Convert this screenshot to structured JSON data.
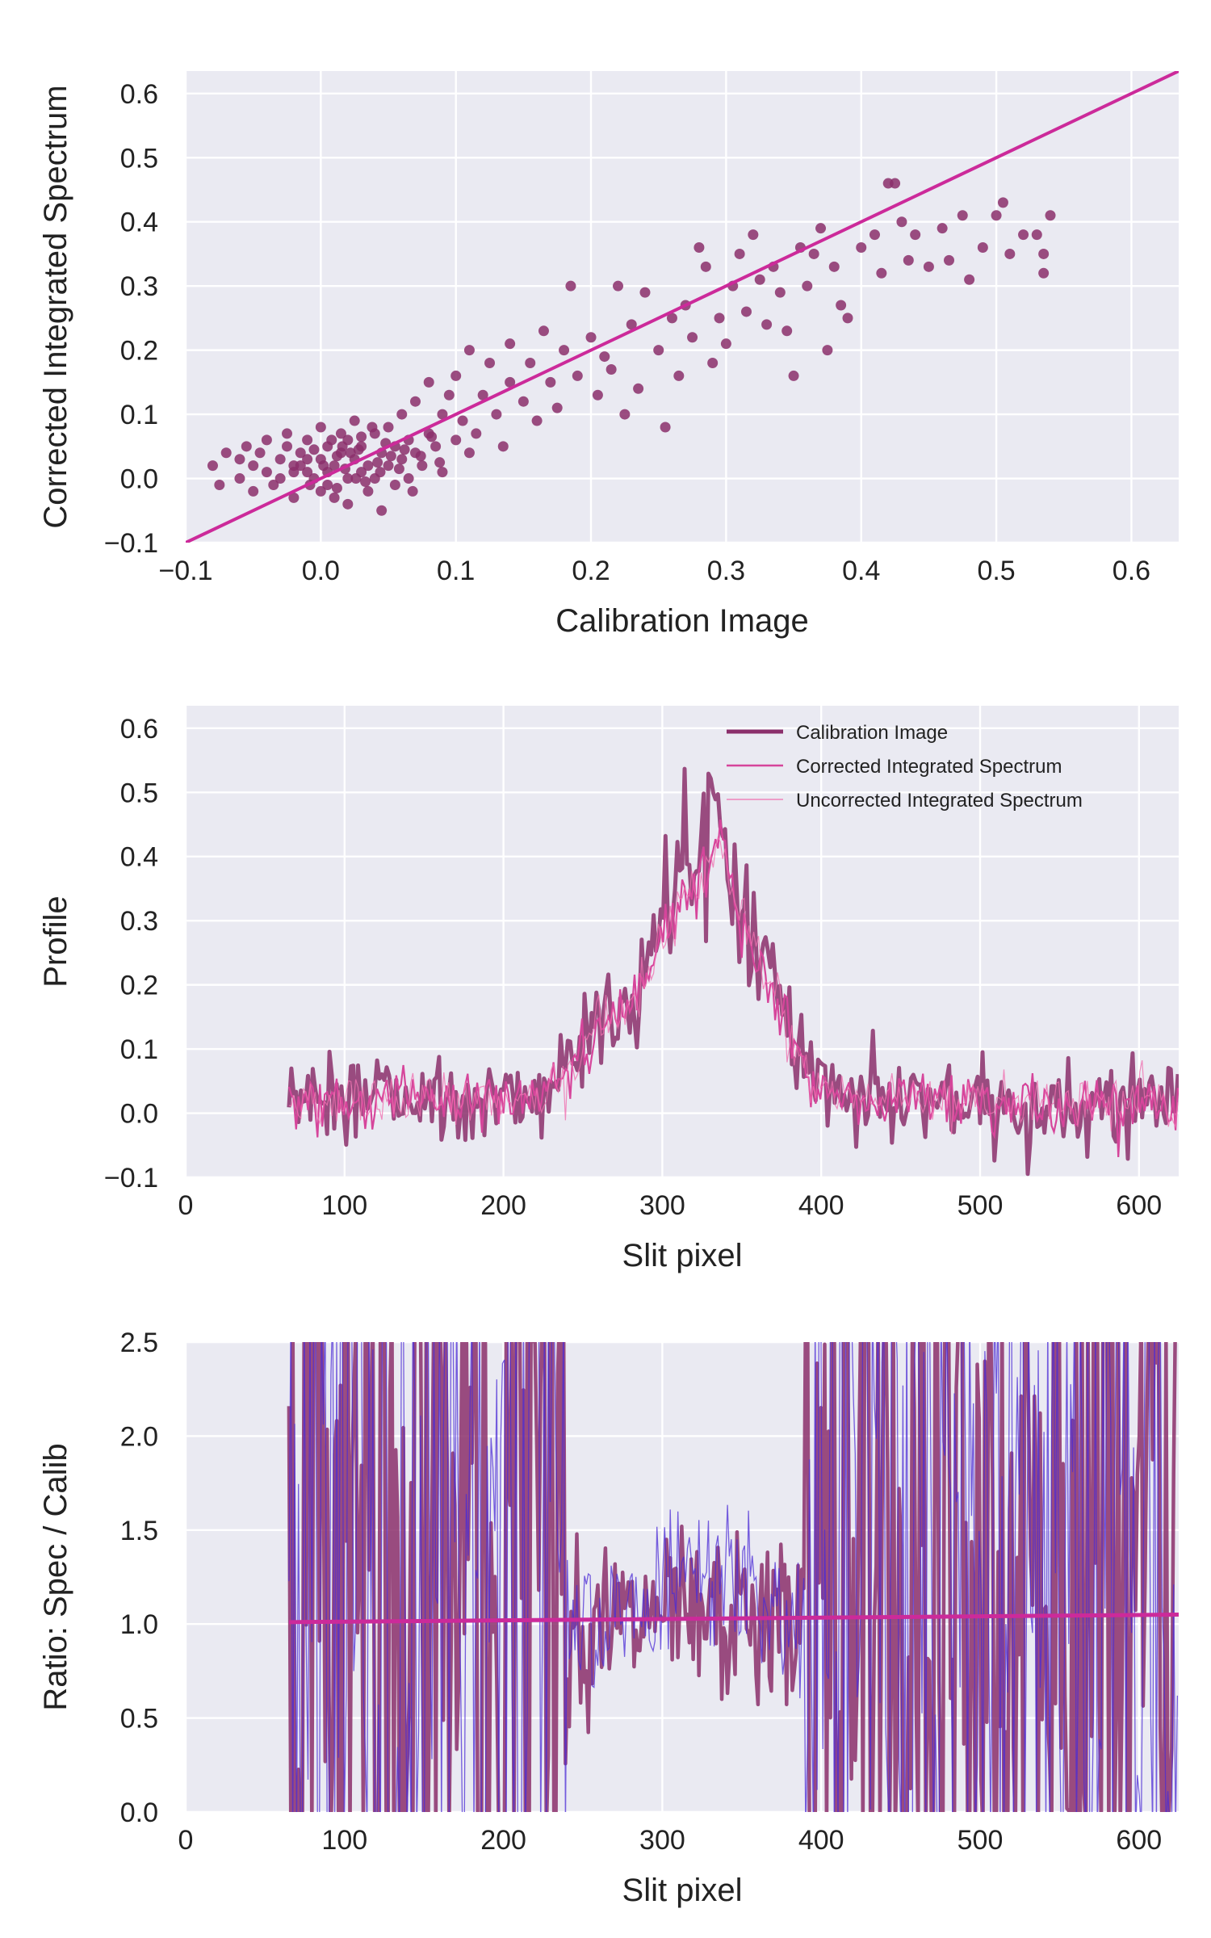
{
  "figure": {
    "background": "#ffffff",
    "panel_background": "#eaeaf2",
    "grid_color": "#ffffff"
  },
  "colors": {
    "calibration": "#8b2f6b",
    "corrected": "#d6459b",
    "uncorrected": "#f070b0",
    "ratio_uncorrected": "#4b2bd6",
    "fit_line": "#cc2a9a"
  },
  "chart_data": [
    {
      "type": "scatter",
      "xlabel": "Calibration Image",
      "ylabel": "Corrected Integrated Spectrum",
      "xlim": [
        -0.1,
        0.635
      ],
      "ylim": [
        -0.1,
        0.635
      ],
      "xticks": [
        "−0.1",
        "0.0",
        "0.1",
        "0.2",
        "0.3",
        "0.4",
        "0.5",
        "0.6"
      ],
      "xtick_values": [
        -0.1,
        0.0,
        0.1,
        0.2,
        0.3,
        0.4,
        0.5,
        0.6
      ],
      "yticks": [
        "−0.1",
        "0.0",
        "0.1",
        "0.2",
        "0.3",
        "0.4",
        "0.5",
        "0.6"
      ],
      "ytick_values": [
        -0.1,
        0.0,
        0.1,
        0.2,
        0.3,
        0.4,
        0.5,
        0.6
      ],
      "grid": true,
      "points": [
        [
          -0.08,
          0.02
        ],
        [
          -0.07,
          0.04
        ],
        [
          -0.075,
          -0.01
        ],
        [
          -0.06,
          0.0
        ],
        [
          -0.06,
          0.03
        ],
        [
          -0.055,
          0.05
        ],
        [
          -0.05,
          0.02
        ],
        [
          -0.05,
          -0.02
        ],
        [
          -0.045,
          0.04
        ],
        [
          -0.04,
          0.01
        ],
        [
          -0.04,
          0.06
        ],
        [
          -0.035,
          -0.01
        ],
        [
          -0.03,
          0.03
        ],
        [
          -0.03,
          0.0
        ],
        [
          -0.025,
          0.05
        ],
        [
          -0.025,
          0.07
        ],
        [
          -0.02,
          0.02
        ],
        [
          -0.02,
          -0.03
        ],
        [
          -0.015,
          0.04
        ],
        [
          -0.01,
          0.01
        ],
        [
          -0.01,
          0.06
        ],
        [
          -0.005,
          0.0
        ],
        [
          0.0,
          0.03
        ],
        [
          0.0,
          -0.02
        ],
        [
          0.0,
          0.08
        ],
        [
          0.005,
          0.05
        ],
        [
          0.005,
          0.01
        ],
        [
          0.01,
          0.02
        ],
        [
          0.01,
          -0.03
        ],
        [
          0.015,
          0.07
        ],
        [
          0.015,
          0.04
        ],
        [
          0.02,
          0.0
        ],
        [
          0.02,
          0.06
        ],
        [
          0.02,
          -0.04
        ],
        [
          0.025,
          0.03
        ],
        [
          0.025,
          0.09
        ],
        [
          0.03,
          0.01
        ],
        [
          0.03,
          0.05
        ],
        [
          0.035,
          -0.02
        ],
        [
          0.035,
          0.02
        ],
        [
          0.04,
          0.07
        ],
        [
          0.04,
          0.0
        ],
        [
          0.045,
          0.04
        ],
        [
          0.045,
          -0.05
        ],
        [
          0.05,
          0.02
        ],
        [
          0.05,
          0.08
        ],
        [
          0.055,
          0.05
        ],
        [
          0.055,
          -0.01
        ],
        [
          0.06,
          0.1
        ],
        [
          0.06,
          0.03
        ],
        [
          0.065,
          0.0
        ],
        [
          0.065,
          0.06
        ],
        [
          0.07,
          0.04
        ],
        [
          0.07,
          0.12
        ],
        [
          0.075,
          0.02
        ],
        [
          0.08,
          0.07
        ],
        [
          0.08,
          0.15
        ],
        [
          0.085,
          0.05
        ],
        [
          0.09,
          0.1
        ],
        [
          0.09,
          0.01
        ],
        [
          0.095,
          0.13
        ],
        [
          0.1,
          0.06
        ],
        [
          0.1,
          0.16
        ],
        [
          0.105,
          0.09
        ],
        [
          0.11,
          0.04
        ],
        [
          0.11,
          0.2
        ],
        [
          0.115,
          0.07
        ],
        [
          0.12,
          0.13
        ],
        [
          0.125,
          0.18
        ],
        [
          0.13,
          0.1
        ],
        [
          0.135,
          0.05
        ],
        [
          0.14,
          0.15
        ],
        [
          0.14,
          0.21
        ],
        [
          0.15,
          0.12
        ],
        [
          0.155,
          0.18
        ],
        [
          0.16,
          0.09
        ],
        [
          0.165,
          0.23
        ],
        [
          0.17,
          0.15
        ],
        [
          0.175,
          0.11
        ],
        [
          0.18,
          0.2
        ],
        [
          0.185,
          0.3
        ],
        [
          0.19,
          0.16
        ],
        [
          0.2,
          0.22
        ],
        [
          0.205,
          0.13
        ],
        [
          0.21,
          0.19
        ],
        [
          0.215,
          0.17
        ],
        [
          0.22,
          0.3
        ],
        [
          0.225,
          0.1
        ],
        [
          0.23,
          0.24
        ],
        [
          0.235,
          0.14
        ],
        [
          0.24,
          0.29
        ],
        [
          0.25,
          0.2
        ],
        [
          0.255,
          0.08
        ],
        [
          0.26,
          0.25
        ],
        [
          0.265,
          0.16
        ],
        [
          0.27,
          0.27
        ],
        [
          0.275,
          0.22
        ],
        [
          0.28,
          0.36
        ],
        [
          0.285,
          0.33
        ],
        [
          0.29,
          0.18
        ],
        [
          0.295,
          0.25
        ],
        [
          0.3,
          0.21
        ],
        [
          0.305,
          0.3
        ],
        [
          0.31,
          0.35
        ],
        [
          0.315,
          0.26
        ],
        [
          0.32,
          0.38
        ],
        [
          0.325,
          0.31
        ],
        [
          0.33,
          0.24
        ],
        [
          0.335,
          0.33
        ],
        [
          0.34,
          0.29
        ],
        [
          0.345,
          0.23
        ],
        [
          0.35,
          0.16
        ],
        [
          0.355,
          0.36
        ],
        [
          0.36,
          0.3
        ],
        [
          0.365,
          0.35
        ],
        [
          0.37,
          0.39
        ],
        [
          0.375,
          0.2
        ],
        [
          0.38,
          0.33
        ],
        [
          0.385,
          0.27
        ],
        [
          0.39,
          0.25
        ],
        [
          0.4,
          0.36
        ],
        [
          0.41,
          0.38
        ],
        [
          0.415,
          0.32
        ],
        [
          0.42,
          0.46
        ],
        [
          0.425,
          0.46
        ],
        [
          0.43,
          0.4
        ],
        [
          0.435,
          0.34
        ],
        [
          0.44,
          0.38
        ],
        [
          0.45,
          0.33
        ],
        [
          0.46,
          0.39
        ],
        [
          0.465,
          0.34
        ],
        [
          0.475,
          0.41
        ],
        [
          0.48,
          0.31
        ],
        [
          0.49,
          0.36
        ],
        [
          0.5,
          0.41
        ],
        [
          0.505,
          0.43
        ],
        [
          0.51,
          0.35
        ],
        [
          0.52,
          0.38
        ],
        [
          0.53,
          0.38
        ],
        [
          0.535,
          0.35
        ],
        [
          0.535,
          0.32
        ],
        [
          0.54,
          0.41
        ],
        [
          -0.01,
          0.03
        ],
        [
          0.005,
          -0.01
        ],
        [
          0.012,
          0.035
        ],
        [
          0.018,
          0.015
        ],
        [
          0.028,
          0.045
        ],
        [
          0.033,
          -0.005
        ],
        [
          0.042,
          0.025
        ],
        [
          0.048,
          0.055
        ],
        [
          0.058,
          0.015
        ],
        [
          0.062,
          0.045
        ],
        [
          0.068,
          -0.02
        ],
        [
          0.074,
          0.035
        ],
        [
          0.082,
          0.065
        ],
        [
          0.088,
          0.025
        ],
        [
          -0.015,
          0.02
        ],
        [
          -0.005,
          0.045
        ],
        [
          0.008,
          0.06
        ],
        [
          0.022,
          0.04
        ],
        [
          0.038,
          0.08
        ],
        [
          0.052,
          0.035
        ],
        [
          0.012,
          -0.015
        ],
        [
          -0.02,
          0.01
        ],
        [
          0.03,
          0.065
        ],
        [
          0.044,
          0.01
        ],
        [
          0.016,
          0.05
        ],
        [
          0.002,
          0.02
        ],
        [
          -0.008,
          -0.01
        ],
        [
          0.026,
          0.0
        ]
      ],
      "fit_line": [
        [
          -0.1,
          -0.1
        ],
        [
          0.635,
          0.635
        ]
      ]
    },
    {
      "type": "line",
      "xlabel": "Slit pixel",
      "ylabel": "Profile",
      "xlim": [
        0,
        625
      ],
      "ylim": [
        -0.1,
        0.635
      ],
      "xticks": [
        "0",
        "100",
        "200",
        "300",
        "400",
        "500",
        "600"
      ],
      "xtick_values": [
        0,
        100,
        200,
        300,
        400,
        500,
        600
      ],
      "yticks": [
        "−0.1",
        "0.0",
        "0.1",
        "0.2",
        "0.3",
        "0.4",
        "0.5",
        "0.6"
      ],
      "ytick_values": [
        -0.1,
        0.0,
        0.1,
        0.2,
        0.3,
        0.4,
        0.5,
        0.6
      ],
      "grid": true,
      "legend_position": "top-right",
      "x_range": [
        65,
        625
      ],
      "series": [
        {
          "name": "Calibration Image",
          "x": [
            65,
            80,
            100,
            120,
            140,
            160,
            180,
            200,
            220,
            240,
            250,
            260,
            270,
            280,
            290,
            300,
            305,
            310,
            315,
            320,
            325,
            330,
            335,
            340,
            345,
            350,
            360,
            370,
            380,
            390,
            400,
            420,
            440,
            460,
            480,
            500,
            520,
            540,
            560,
            580,
            600,
            625
          ],
          "y": [
            0.02,
            0.03,
            0.02,
            0.03,
            0.02,
            0.02,
            0.01,
            0.02,
            0.03,
            0.07,
            0.12,
            0.15,
            0.18,
            0.16,
            0.22,
            0.34,
            0.32,
            0.42,
            0.45,
            0.38,
            0.44,
            0.48,
            0.5,
            0.41,
            0.38,
            0.33,
            0.26,
            0.21,
            0.13,
            0.07,
            0.04,
            0.02,
            0.01,
            0.02,
            0.0,
            0.01,
            0.0,
            0.01,
            0.0,
            0.01,
            0.01,
            0.01
          ]
        },
        {
          "name": "Corrected Integrated Spectrum",
          "x": [
            65,
            80,
            100,
            120,
            140,
            160,
            180,
            200,
            220,
            240,
            250,
            260,
            270,
            280,
            290,
            300,
            305,
            310,
            315,
            320,
            325,
            330,
            335,
            340,
            345,
            350,
            360,
            370,
            380,
            390,
            400,
            420,
            440,
            460,
            480,
            500,
            520,
            540,
            560,
            580,
            600,
            625
          ],
          "y": [
            0.02,
            0.02,
            0.02,
            0.02,
            0.02,
            0.02,
            0.02,
            0.02,
            0.03,
            0.06,
            0.1,
            0.13,
            0.15,
            0.16,
            0.2,
            0.28,
            0.3,
            0.33,
            0.35,
            0.34,
            0.36,
            0.38,
            0.44,
            0.4,
            0.33,
            0.3,
            0.24,
            0.19,
            0.12,
            0.06,
            0.04,
            0.03,
            0.02,
            0.02,
            0.02,
            0.02,
            0.02,
            0.02,
            0.02,
            0.02,
            0.02,
            0.01
          ]
        },
        {
          "name": "Uncorrected Integrated Spectrum",
          "x": [
            65,
            80,
            100,
            120,
            140,
            160,
            180,
            200,
            220,
            240,
            250,
            260,
            270,
            280,
            290,
            300,
            305,
            310,
            315,
            320,
            325,
            330,
            335,
            340,
            345,
            350,
            360,
            370,
            380,
            390,
            400,
            420,
            440,
            460,
            480,
            500,
            520,
            540,
            560,
            580,
            600,
            625
          ],
          "y": [
            0.02,
            0.02,
            0.02,
            0.02,
            0.02,
            0.02,
            0.02,
            0.02,
            0.03,
            0.06,
            0.1,
            0.13,
            0.15,
            0.16,
            0.2,
            0.28,
            0.3,
            0.33,
            0.35,
            0.34,
            0.36,
            0.38,
            0.44,
            0.4,
            0.33,
            0.3,
            0.24,
            0.19,
            0.12,
            0.06,
            0.04,
            0.03,
            0.02,
            0.02,
            0.02,
            0.02,
            0.02,
            0.02,
            0.02,
            0.02,
            0.02,
            0.01
          ]
        }
      ]
    },
    {
      "type": "line",
      "xlabel": "Slit pixel",
      "ylabel": "Ratio: Spec / Calib",
      "xlim": [
        0,
        625
      ],
      "ylim": [
        0.0,
        2.5
      ],
      "xticks": [
        "0",
        "100",
        "200",
        "300",
        "400",
        "500",
        "600"
      ],
      "xtick_values": [
        0,
        100,
        200,
        300,
        400,
        500,
        600
      ],
      "yticks": [
        "0.0",
        "0.5",
        "1.0",
        "1.5",
        "2.0",
        "2.5"
      ],
      "ytick_values": [
        0.0,
        0.5,
        1.0,
        1.5,
        2.0,
        2.5
      ],
      "grid": true,
      "x_range": [
        65,
        625
      ],
      "calm_region": [
        240,
        390
      ],
      "fit_line": [
        [
          65,
          1.01
        ],
        [
          625,
          1.05
        ]
      ]
    }
  ]
}
